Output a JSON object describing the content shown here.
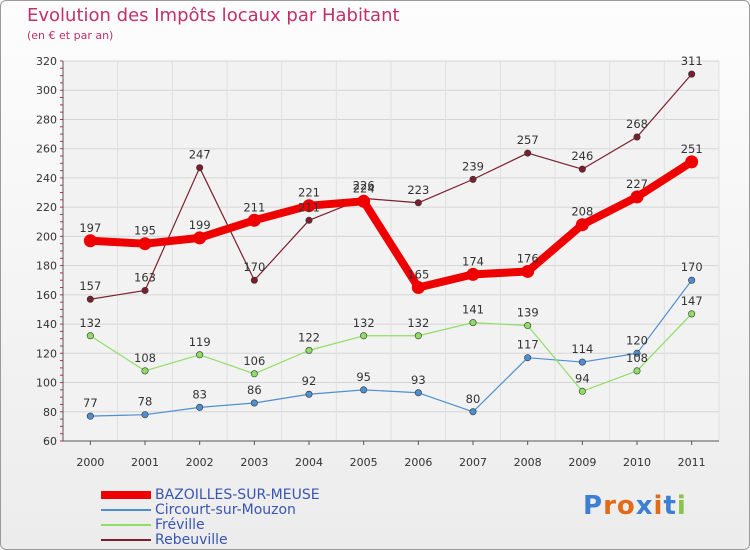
{
  "header": {
    "title": "Evolution des Impôts locaux par Habitant",
    "subtitle": "(en € et par an)"
  },
  "brand": {
    "text": "Proxiti"
  },
  "chart_data": {
    "type": "line",
    "title": "Evolution des Impôts locaux par Habitant",
    "subtitle": "(en € et par an)",
    "x": [
      "2000",
      "2001",
      "2002",
      "2003",
      "2004",
      "2005",
      "2006",
      "2007",
      "2008",
      "2009",
      "2010",
      "2011"
    ],
    "ylim": [
      60,
      320
    ],
    "yticks": [
      60,
      80,
      100,
      120,
      140,
      160,
      180,
      200,
      220,
      240,
      260,
      280,
      300,
      320
    ],
    "grid": true,
    "legend": "bottom-left",
    "series": [
      {
        "name": "BAZOILLES-SUR-MEUSE",
        "color": "#ee0000",
        "values": [
          197,
          195,
          199,
          211,
          221,
          224,
          165,
          174,
          176,
          208,
          227,
          251
        ]
      },
      {
        "name": "Circourt-sur-Mouzon",
        "color": "#4f8fd0",
        "values": [
          77,
          78,
          83,
          86,
          92,
          95,
          93,
          80,
          117,
          114,
          120,
          170
        ]
      },
      {
        "name": "Fréville",
        "color": "#90dd66",
        "values": [
          132,
          108,
          119,
          106,
          122,
          132,
          132,
          141,
          139,
          94,
          108,
          147
        ]
      },
      {
        "name": "Rebeuville",
        "color": "#7b1f2e",
        "values": [
          157,
          163,
          247,
          170,
          211,
          226,
          223,
          239,
          257,
          246,
          268,
          311
        ]
      }
    ]
  }
}
